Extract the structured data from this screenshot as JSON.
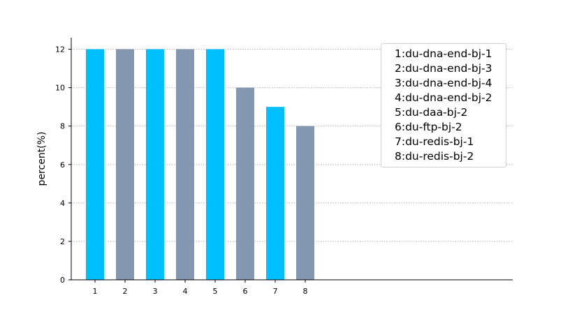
{
  "chart_data": {
    "type": "bar",
    "categories": [
      "1",
      "2",
      "3",
      "4",
      "5",
      "6",
      "7",
      "8"
    ],
    "values": [
      12,
      12,
      12,
      12,
      12,
      10,
      9,
      8
    ],
    "colors": [
      "#00bfff",
      "#8497b0",
      "#00bfff",
      "#8497b0",
      "#00bfff",
      "#8497b0",
      "#00bfff",
      "#8497b0"
    ],
    "ylabel": "percent(%)",
    "xlabel": "",
    "ylim": [
      0,
      12.6
    ],
    "yticks": [
      0,
      2,
      4,
      6,
      8,
      10,
      12
    ],
    "grid": "horizontal dotted",
    "legend_placement": "top-right",
    "legend": [
      "1:du-dna-end-bj-1",
      "2:du-dna-end-bj-3",
      "3:du-dna-end-bj-4",
      "4:du-dna-end-bj-2",
      "5:du-daa-bj-2",
      "6:du-ftp-bj-2",
      "7:du-redis-bj-1",
      "8:du-redis-bj-2"
    ]
  }
}
